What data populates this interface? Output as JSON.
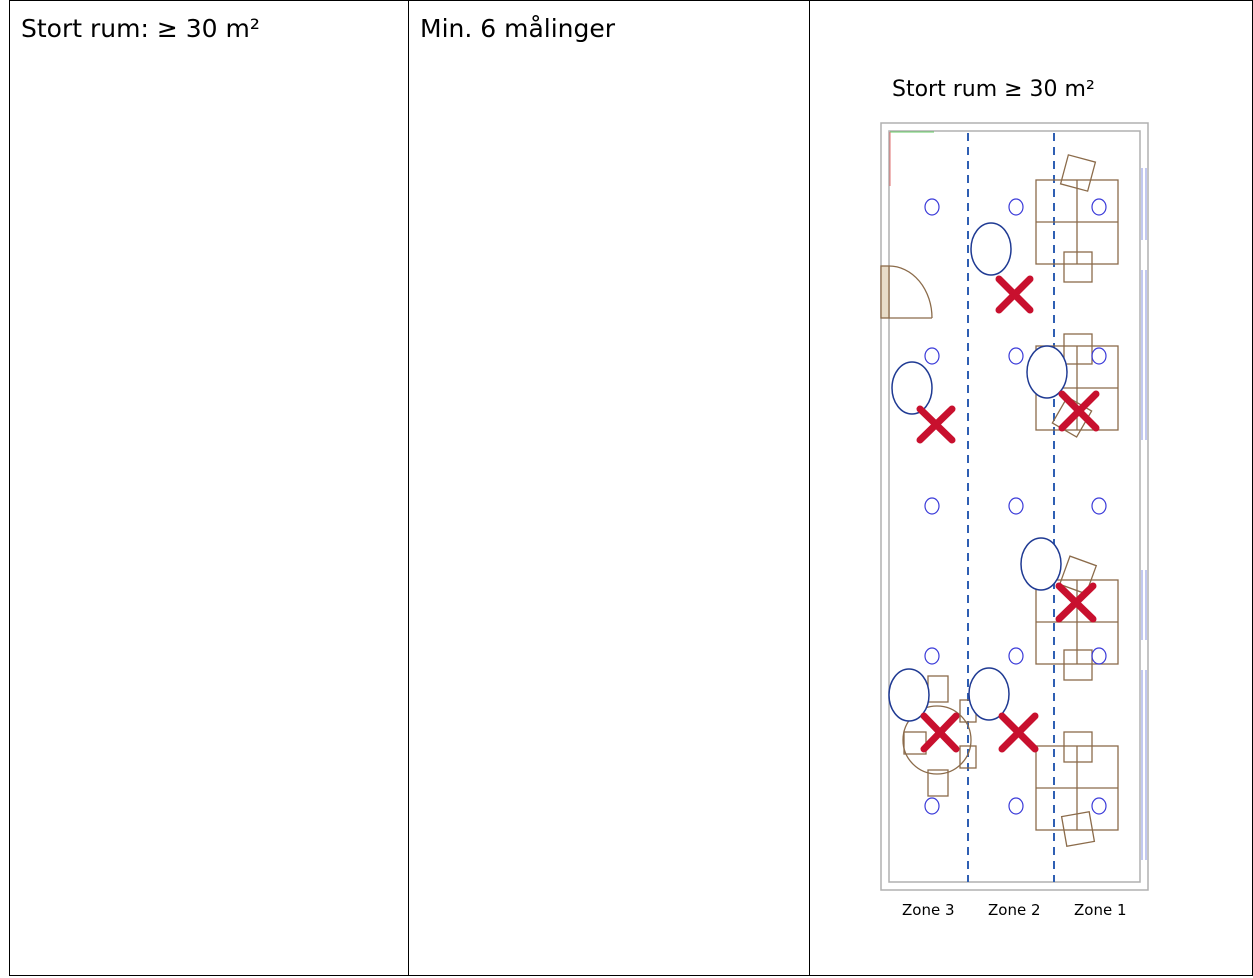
{
  "table": {
    "col1_text": "Stort rum: ≥ 30 m²",
    "col2_text": "Min. 6 målinger"
  },
  "floorplan": {
    "title": "Stort rum ≥ 30 m²",
    "zone_labels": [
      "Zone 3",
      "Zone 2",
      "Zone 1"
    ],
    "colors": {
      "wall": "#b0b0b0",
      "furniture": "#8b6b4a",
      "zone_line": "#2f5fb3",
      "light": "#3b3bd9",
      "measure_circle": "#1f3a93",
      "cross": "#c8102e"
    },
    "measurement_count": 6
  }
}
